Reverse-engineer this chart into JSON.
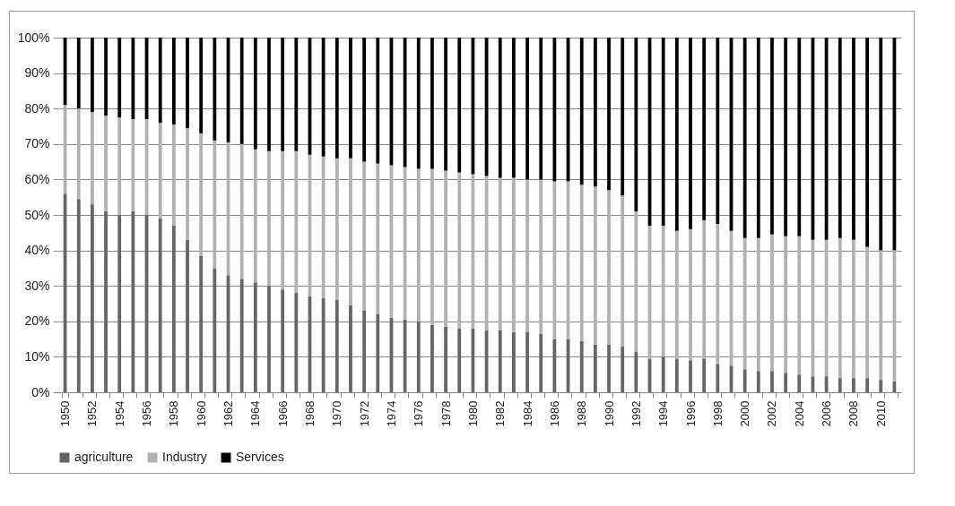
{
  "chart_data": {
    "type": "bar",
    "stacked": true,
    "categories": [
      "1950",
      null,
      "1952",
      null,
      "1954",
      null,
      "1956",
      null,
      "1958",
      null,
      "1960",
      null,
      "1962",
      null,
      "1964",
      null,
      "1966",
      null,
      "1968",
      null,
      "1970",
      null,
      "1972",
      null,
      "1974",
      null,
      "1976",
      null,
      "1978",
      null,
      "1980",
      null,
      "1982",
      null,
      "1984",
      null,
      "1986",
      null,
      "1988",
      null,
      "1990",
      null,
      "1992",
      null,
      "1994",
      null,
      "1996",
      null,
      "1998",
      null,
      "2000",
      null,
      "2002",
      null,
      "2004",
      null,
      "2006",
      null,
      "2008",
      null,
      "2010",
      null
    ],
    "series": [
      {
        "name": "agriculture",
        "color": "#666666",
        "values": [
          56,
          54.5,
          53,
          51,
          50,
          51,
          50,
          49,
          47,
          43,
          38.5,
          35,
          33,
          32,
          31,
          30,
          29,
          28,
          27,
          26.5,
          26,
          24.5,
          23,
          22,
          21,
          20.5,
          20,
          19,
          18.5,
          18,
          18,
          17.5,
          17.5,
          17,
          17,
          16.5,
          15,
          15,
          14.5,
          13.5,
          13.5,
          13,
          11.5,
          9.5,
          10,
          9.5,
          9,
          9.5,
          8,
          7.5,
          6.5,
          6,
          6,
          5.5,
          5,
          4.5,
          4.5,
          4,
          4,
          4,
          3.5,
          3
        ]
      },
      {
        "name": "Industry",
        "color": "#b2b2b2",
        "values": [
          25,
          25.5,
          26,
          27,
          27.5,
          26,
          27,
          27,
          28.5,
          31.5,
          34.5,
          36,
          37.5,
          38,
          37.5,
          38,
          39,
          40,
          40,
          40,
          40,
          41.5,
          42,
          42.5,
          43,
          43,
          43,
          44,
          44,
          44,
          43.5,
          43.5,
          43,
          43.5,
          43,
          43.5,
          44.5,
          44.5,
          44,
          44.5,
          43.5,
          42.5,
          39.5,
          37.5,
          37,
          36,
          37,
          39,
          39.5,
          38,
          37,
          37.5,
          38.5,
          38.5,
          39,
          38.5,
          38.5,
          39.5,
          39,
          37,
          36.5,
          37
        ]
      },
      {
        "name": "Services",
        "color": "#000000",
        "values": [
          19,
          20,
          21,
          22,
          22.5,
          23,
          23,
          24,
          24.5,
          25.5,
          27,
          29,
          29.5,
          30,
          31.5,
          32,
          32,
          32,
          33,
          33.5,
          34,
          34,
          35,
          35.5,
          36,
          36.5,
          37,
          37,
          37.5,
          38,
          38.5,
          39,
          39.5,
          39.5,
          40,
          40,
          40.5,
          40.5,
          41.5,
          42,
          43,
          44.5,
          49,
          53,
          53,
          54.5,
          54,
          51.5,
          52.5,
          54.5,
          56.5,
          56.5,
          55.5,
          56,
          56,
          57,
          57,
          56.5,
          57,
          59,
          60,
          60
        ]
      }
    ],
    "ylim": [
      0,
      100
    ],
    "yticks": [
      {
        "value": 0,
        "label": "0%"
      },
      {
        "value": 10,
        "label": "10%"
      },
      {
        "value": 20,
        "label": "20%"
      },
      {
        "value": 30,
        "label": "30%"
      },
      {
        "value": 40,
        "label": "40%"
      },
      {
        "value": 50,
        "label": "50%"
      },
      {
        "value": 60,
        "label": "60%"
      },
      {
        "value": 70,
        "label": "70%"
      },
      {
        "value": 80,
        "label": "80%"
      },
      {
        "value": 90,
        "label": "90%"
      },
      {
        "value": 100,
        "label": "100%"
      }
    ],
    "grid": "y",
    "legend": "bottom"
  }
}
